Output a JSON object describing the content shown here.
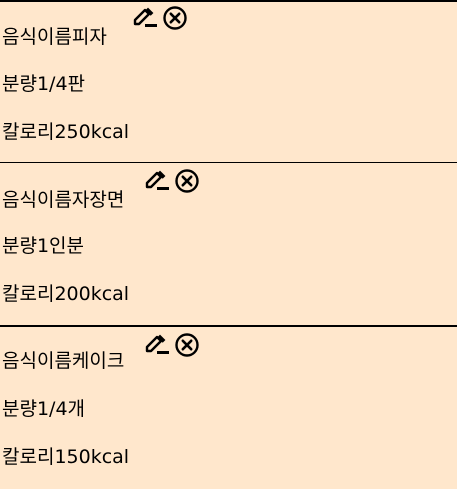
{
  "labels": {
    "name": "음식이름",
    "amount": "분량",
    "calorie": "칼로리"
  },
  "foods": [
    {
      "name": "피자",
      "amount": "1/4판",
      "calorie": "250kcal"
    },
    {
      "name": "자장면",
      "amount": "1인분",
      "calorie": "200kcal"
    },
    {
      "name": "케이크",
      "amount": "1/4개",
      "calorie": "150kcal"
    }
  ],
  "icons": {
    "edit": "pencil-edit-icon",
    "delete": "close-circle-icon"
  },
  "colors": {
    "background": "#ffe7cc",
    "text": "#000000",
    "divider": "#000000"
  }
}
